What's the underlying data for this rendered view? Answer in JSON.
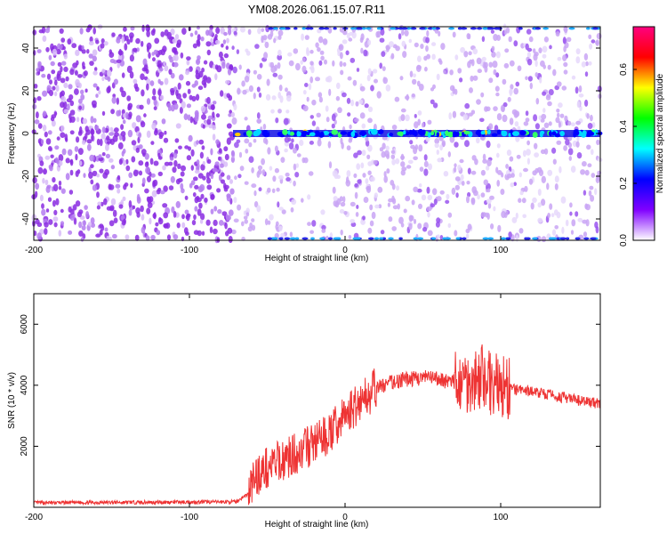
{
  "title": "YM08.2026.061.15.07.R11",
  "chart_data": [
    {
      "type": "heatmap",
      "xlabel": "Height of straight line (km)",
      "ylabel": "Frequency (Hz)",
      "xlim": [
        -200,
        164
      ],
      "ylim": [
        -50,
        50
      ],
      "xticks": [
        -200,
        -100,
        0,
        100
      ],
      "yticks": [
        -40,
        -20,
        0,
        20,
        40
      ],
      "grid": false,
      "noise_onset_x": -72,
      "signal_band_y": 0,
      "colorbar": {
        "label": "Normalized spectral amplitude",
        "range": [
          0.0,
          0.75
        ],
        "ticks": [
          "0.0",
          "0.2",
          "0.4",
          "0.6"
        ],
        "colormap": [
          "#ffffff",
          "#8000ff",
          "#0000ff",
          "#00ffff",
          "#00ff00",
          "#ffff00",
          "#ff0000",
          "#ff0080"
        ]
      }
    },
    {
      "type": "line",
      "xlabel": "Height of straight line (km)",
      "ylabel": "SNR (10 * v/v)",
      "xlim": [
        -200,
        164
      ],
      "ylim": [
        0,
        7000
      ],
      "xticks": [
        -200,
        -100,
        0,
        100
      ],
      "yticks": [
        2000,
        4000,
        6000
      ],
      "grid": false,
      "series": [
        {
          "color": "#ee3333",
          "x": [
            -200,
            -150,
            -100,
            -70,
            -62,
            -58,
            -50,
            -40,
            -30,
            -20,
            -10,
            0,
            10,
            20,
            30,
            40,
            50,
            60,
            70,
            80,
            90,
            95,
            100,
            103,
            106,
            110,
            120,
            130,
            140,
            150,
            164
          ],
          "y": [
            150,
            160,
            170,
            180,
            450,
            1000,
            1300,
            1550,
            1800,
            2100,
            2400,
            3000,
            3500,
            3900,
            4100,
            4200,
            4250,
            4200,
            4100,
            4150,
            4300,
            4000,
            4000,
            3850,
            3900,
            3850,
            3800,
            3700,
            3600,
            3500,
            3400
          ]
        }
      ]
    }
  ]
}
